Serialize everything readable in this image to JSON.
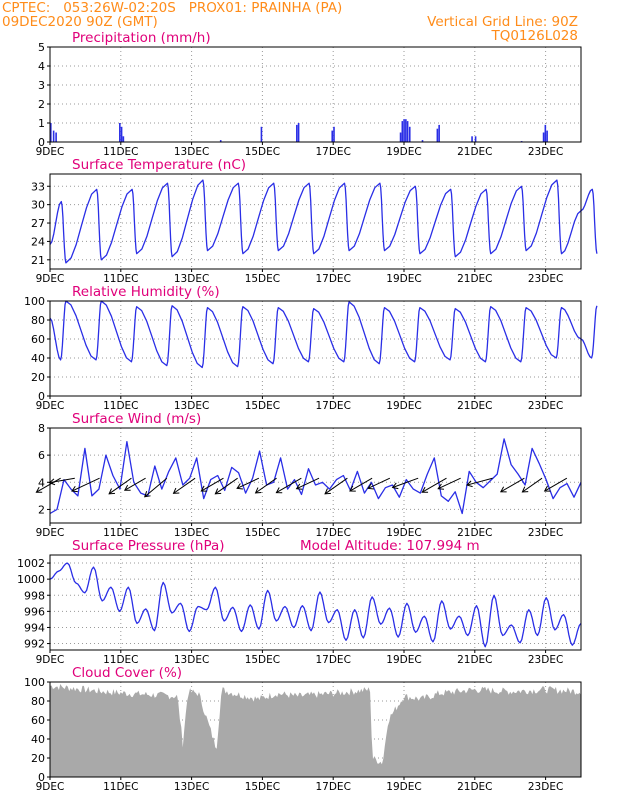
{
  "header": {
    "line1": "CPTEC:   053:26W-02:20S   PROX01: PRAINHA (PA)",
    "line2": "09DEC2020 90Z (GMT)",
    "right1": "Vertical Grid Line: 90Z",
    "right2": "TQ0126L028"
  },
  "colors": {
    "header": "#ff8c1a",
    "title": "#e0007a",
    "line": "#2a2ee6",
    "cloud": "#a9a9a9",
    "grid": "#9a9a9a",
    "wind_vector": "#000000"
  },
  "chart_data": [
    {
      "id": "precip",
      "type": "bar",
      "title": "Precipitation  (mm/h)",
      "ylim": [
        0,
        5
      ],
      "yticks": [
        0,
        1,
        2,
        3,
        4,
        5
      ],
      "x_range_days": [
        9,
        24
      ],
      "xtick_labels": [
        "9DEC",
        "11DEC",
        "13DEC",
        "15DEC",
        "17DEC",
        "19DEC",
        "21DEC",
        "23DEC"
      ],
      "grid": true,
      "events": [
        {
          "day": 9.0,
          "v": 1.0
        },
        {
          "day": 9.08,
          "v": 0.6
        },
        {
          "day": 9.15,
          "v": 0.5
        },
        {
          "day": 10.95,
          "v": 1.0
        },
        {
          "day": 11.0,
          "v": 0.8
        },
        {
          "day": 11.05,
          "v": 0.3
        },
        {
          "day": 13.8,
          "v": 0.1
        },
        {
          "day": 14.95,
          "v": 0.8
        },
        {
          "day": 15.95,
          "v": 0.9
        },
        {
          "day": 16.0,
          "v": 1.0
        },
        {
          "day": 16.95,
          "v": 0.6
        },
        {
          "day": 17.0,
          "v": 0.8
        },
        {
          "day": 18.88,
          "v": 0.5
        },
        {
          "day": 18.93,
          "v": 1.1
        },
        {
          "day": 18.98,
          "v": 1.2
        },
        {
          "day": 19.03,
          "v": 1.2
        },
        {
          "day": 19.08,
          "v": 1.1
        },
        {
          "day": 19.14,
          "v": 0.8
        },
        {
          "day": 19.5,
          "v": 0.1
        },
        {
          "day": 19.92,
          "v": 0.7
        },
        {
          "day": 19.97,
          "v": 0.9
        },
        {
          "day": 20.9,
          "v": 0.3
        },
        {
          "day": 21.0,
          "v": 0.3
        },
        {
          "day": 22.3,
          "v": 0.05
        },
        {
          "day": 22.92,
          "v": 0.5
        },
        {
          "day": 22.97,
          "v": 0.9
        },
        {
          "day": 23.02,
          "v": 0.6
        }
      ]
    },
    {
      "id": "temp",
      "type": "line",
      "title": "Surface Temperature (nC)",
      "ylim": [
        19.5,
        35
      ],
      "yticks": [
        21,
        24,
        27,
        30,
        33
      ],
      "x_range_days": [
        9,
        24
      ],
      "xtick_labels": [
        "9DEC",
        "11DEC",
        "13DEC",
        "15DEC",
        "17DEC",
        "19DEC",
        "21DEC",
        "23DEC"
      ],
      "grid": true,
      "min": [
        23.5,
        20.5,
        21.0,
        22.0,
        21.5,
        22.5,
        22.0,
        22.5,
        22.0,
        22.5,
        22.5,
        22.0,
        21.5,
        22.0,
        22.5,
        22.0,
        22.0
      ],
      "max": [
        30.5,
        32.5,
        32.5,
        33.5,
        34.0,
        33.5,
        33.5,
        33.5,
        33.5,
        33.5,
        33.0,
        32.5,
        32.5,
        33.0,
        34.0,
        32.5
      ],
      "end_value": 29.0
    },
    {
      "id": "rh",
      "type": "line",
      "title": "Relative Humidity  (%)",
      "ylim": [
        0,
        100
      ],
      "yticks": [
        0,
        20,
        40,
        60,
        80,
        100
      ],
      "x_range_days": [
        9,
        24
      ],
      "xtick_labels": [
        "9DEC",
        "11DEC",
        "13DEC",
        "15DEC",
        "17DEC",
        "19DEC",
        "21DEC",
        "23DEC"
      ],
      "grid": true,
      "max": [
        82,
        100,
        100,
        94,
        95,
        93,
        94,
        93,
        92,
        99,
        93,
        93,
        92,
        94,
        93,
        93,
        95
      ],
      "min": [
        38,
        38,
        36,
        32,
        30,
        31,
        34,
        36,
        36,
        34,
        36,
        38,
        36,
        36,
        40,
        40
      ],
      "end_value": 60
    },
    {
      "id": "wind",
      "type": "line",
      "title": "Surface Wind  (m/s)",
      "ylim": [
        1,
        8
      ],
      "yticks": [
        2,
        4,
        6,
        8
      ],
      "x_range_days": [
        9,
        24
      ],
      "xtick_labels": [
        "9DEC",
        "11DEC",
        "13DEC",
        "15DEC",
        "17DEC",
        "19DEC",
        "21DEC",
        "23DEC"
      ],
      "grid": true,
      "speed": [
        1.7,
        2.0,
        4.2,
        3.5,
        3.0,
        6.5,
        3.0,
        3.5,
        6.0,
        4.5,
        3.5,
        7.0,
        4.0,
        3.2,
        3.0,
        5.2,
        3.5,
        4.8,
        5.8,
        3.8,
        4.3,
        5.8,
        2.8,
        4.2,
        4.5,
        3.4,
        5.1,
        4.7,
        3.2,
        4.3,
        6.3,
        3.8,
        4.0,
        5.8,
        3.5,
        4.2,
        3.1,
        5.0,
        3.8,
        4.0,
        3.5,
        4.2,
        4.5,
        3.4,
        4.8,
        3.2,
        4.0,
        2.8,
        3.6,
        3.8,
        2.9,
        4.2,
        3.5,
        3.2,
        4.6,
        5.8,
        3.0,
        2.6,
        3.3,
        1.7,
        4.8,
        4.0,
        3.6,
        4.1,
        4.6,
        7.2,
        5.3,
        4.6,
        3.8,
        6.5,
        5.4,
        4.2,
        2.8,
        3.6,
        3.9,
        2.9,
        4.0
      ],
      "vectors": [
        {
          "day": 9.3,
          "dir_deg": 210,
          "mag": 3.5
        },
        {
          "day": 9.7,
          "dir_deg": 190,
          "mag": 3.2
        },
        {
          "day": 10.4,
          "dir_deg": 205,
          "mag": 3.8
        },
        {
          "day": 11.3,
          "dir_deg": 215,
          "mag": 3.4
        },
        {
          "day": 11.7,
          "dir_deg": 210,
          "mag": 3.0
        },
        {
          "day": 12.3,
          "dir_deg": 220,
          "mag": 3.6
        },
        {
          "day": 13.1,
          "dir_deg": 215,
          "mag": 3.3
        },
        {
          "day": 13.9,
          "dir_deg": 210,
          "mag": 3.2
        },
        {
          "day": 14.3,
          "dir_deg": 215,
          "mag": 3.4
        },
        {
          "day": 14.9,
          "dir_deg": 205,
          "mag": 3.0
        },
        {
          "day": 15.4,
          "dir_deg": 215,
          "mag": 3.2
        },
        {
          "day": 16.1,
          "dir_deg": 210,
          "mag": 3.6
        },
        {
          "day": 16.6,
          "dir_deg": 205,
          "mag": 3.1
        },
        {
          "day": 17.4,
          "dir_deg": 215,
          "mag": 3.4
        },
        {
          "day": 18.1,
          "dir_deg": 210,
          "mag": 3.2
        },
        {
          "day": 18.6,
          "dir_deg": 205,
          "mag": 3.0
        },
        {
          "day": 19.4,
          "dir_deg": 200,
          "mag": 3.4
        },
        {
          "day": 20.2,
          "dir_deg": 210,
          "mag": 3.5
        },
        {
          "day": 20.6,
          "dir_deg": 205,
          "mag": 3.1
        },
        {
          "day": 21.5,
          "dir_deg": 195,
          "mag": 3.3
        },
        {
          "day": 22.4,
          "dir_deg": 210,
          "mag": 3.4
        },
        {
          "day": 22.9,
          "dir_deg": 215,
          "mag": 3.0
        },
        {
          "day": 23.6,
          "dir_deg": 210,
          "mag": 3.2
        }
      ]
    },
    {
      "id": "pressure",
      "type": "line",
      "title": "Surface Pressure (hPa)",
      "annotation": "Model Altitude: 107.994  m",
      "ylim": [
        991.2,
        1003
      ],
      "yticks": [
        992,
        994,
        996,
        998,
        1000,
        1002
      ],
      "x_range_days": [
        9,
        24
      ],
      "xtick_labels": [
        "9DEC",
        "11DEC",
        "13DEC",
        "15DEC",
        "17DEC",
        "19DEC",
        "21DEC",
        "23DEC"
      ],
      "grid": true,
      "values": [
        1000.0,
        1001.0,
        1002.0,
        999.5,
        998.3,
        1001.5,
        997.3,
        999.0,
        996.0,
        999.0,
        994.5,
        996.3,
        993.6,
        999.6,
        995.8,
        997.0,
        993.5,
        996.6,
        996.2,
        999.0,
        994.8,
        996.5,
        993.5,
        996.8,
        993.8,
        998.6,
        994.8,
        996.6,
        994.0,
        996.7,
        993.6,
        998.4,
        994.6,
        996.2,
        992.4,
        996.2,
        992.7,
        997.8,
        994.4,
        996.4,
        992.8,
        997.0,
        993.4,
        995.4,
        992.2,
        997.3,
        993.8,
        995.4,
        993.0,
        996.7,
        991.6,
        998.0,
        993.0,
        994.3,
        992.1,
        996.2,
        993.0,
        997.7,
        993.7,
        995.6,
        991.8,
        994.5
      ]
    },
    {
      "id": "cloud",
      "type": "area",
      "title": "Cloud Cover  (%)",
      "ylim": [
        0,
        100
      ],
      "yticks": [
        0,
        20,
        40,
        60,
        80,
        100
      ],
      "x_range_days": [
        9,
        24
      ],
      "xtick_labels": [
        "9DEC",
        "11DEC",
        "13DEC",
        "15DEC",
        "17DEC",
        "19DEC",
        "21DEC",
        "23DEC"
      ],
      "grid": true,
      "profile": [
        {
          "day": 9.0,
          "v": 96
        },
        {
          "day": 10.5,
          "v": 90
        },
        {
          "day": 11.2,
          "v": 88
        },
        {
          "day": 12.6,
          "v": 85
        },
        {
          "day": 12.75,
          "v": 35
        },
        {
          "day": 12.9,
          "v": 90
        },
        {
          "day": 13.2,
          "v": 88
        },
        {
          "day": 13.7,
          "v": 30
        },
        {
          "day": 13.85,
          "v": 92
        },
        {
          "day": 14.2,
          "v": 88
        },
        {
          "day": 14.9,
          "v": 82
        },
        {
          "day": 15.4,
          "v": 88
        },
        {
          "day": 16.0,
          "v": 85
        },
        {
          "day": 17.0,
          "v": 88
        },
        {
          "day": 18.05,
          "v": 92
        },
        {
          "day": 18.1,
          "v": 20
        },
        {
          "day": 18.4,
          "v": 15
        },
        {
          "day": 18.55,
          "v": 60
        },
        {
          "day": 19.0,
          "v": 85
        },
        {
          "day": 19.5,
          "v": 82
        },
        {
          "day": 20.0,
          "v": 88
        },
        {
          "day": 21.0,
          "v": 92
        },
        {
          "day": 22.0,
          "v": 90
        },
        {
          "day": 23.0,
          "v": 92
        },
        {
          "day": 24.0,
          "v": 90
        }
      ]
    }
  ]
}
